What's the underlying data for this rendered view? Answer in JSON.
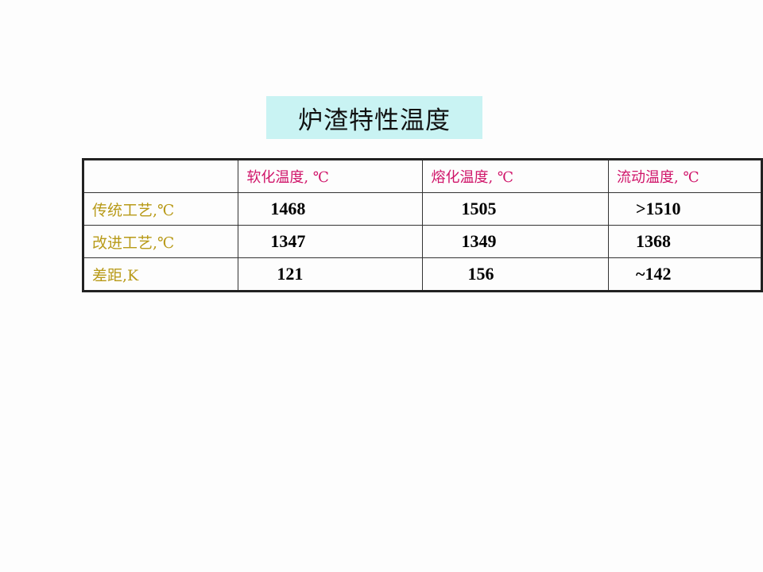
{
  "title": "炉渣特性温度",
  "table": {
    "headers": [
      "",
      "软化温度, ℃",
      "熔化温度, ℃",
      "流动温度, ℃"
    ],
    "rows": [
      {
        "label": "传统工艺,℃",
        "values": [
          "1468",
          "1505",
          ">1510"
        ]
      },
      {
        "label": "改进工艺,℃",
        "values": [
          "1347",
          "1349",
          "1368"
        ]
      },
      {
        "label": "差距,K",
        "values": [
          "121",
          "156",
          "~142"
        ]
      }
    ]
  },
  "colors": {
    "title_bg": "#c9f3f3",
    "header_text": "#d0156a",
    "row_label_text": "#b89a18"
  }
}
